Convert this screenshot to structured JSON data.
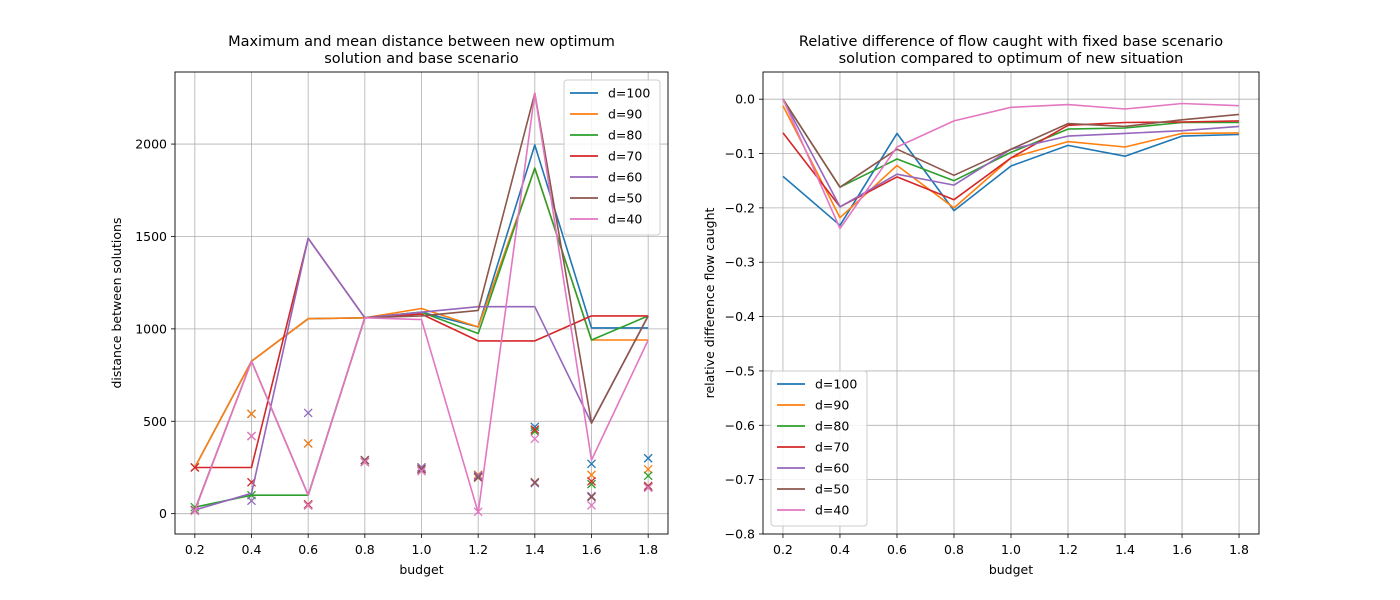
{
  "colors": {
    "d=100": "#1f77b4",
    "d=90": "#ff7f0e",
    "d=80": "#2ca02c",
    "d=70": "#d62728",
    "d=60": "#9467bd",
    "d=50": "#8c564b",
    "d=40": "#e377c2"
  },
  "chart_data": [
    {
      "type": "line",
      "title": "Maximum and mean distance between new optimum\nsolution and base scenario",
      "xlabel": "budget",
      "ylabel": "distance between solutions",
      "x": [
        0.2,
        0.4,
        0.6,
        0.8,
        1.0,
        1.2,
        1.4,
        1.6,
        1.8
      ],
      "xticks": [
        "0.2",
        "0.4",
        "0.6",
        "0.8",
        "1.0",
        "1.2",
        "1.4",
        "1.6",
        "1.8"
      ],
      "yticks": [
        "0",
        "500",
        "1000",
        "1500",
        "2000"
      ],
      "xlim": [
        0.13,
        1.87
      ],
      "ylim": [
        -110,
        2390
      ],
      "grid": true,
      "legend": "top-right",
      "series": [
        {
          "name": "d=100",
          "max": [
            250,
            825,
            1055,
            1060,
            1090,
            1010,
            1995,
            1005,
            1005
          ],
          "mean": [
            250,
            540,
            380,
            280,
            250,
            210,
            470,
            270,
            300
          ]
        },
        {
          "name": "d=90",
          "max": [
            250,
            825,
            1055,
            1060,
            1110,
            1010,
            1870,
            940,
            940
          ],
          "mean": [
            250,
            540,
            380,
            280,
            250,
            210,
            455,
            210,
            240
          ]
        },
        {
          "name": "d=80",
          "max": [
            35,
            100,
            100,
            1060,
            1090,
            975,
            1870,
            940,
            1070
          ],
          "mean": [
            35,
            100,
            50,
            280,
            240,
            200,
            445,
            160,
            205
          ]
        },
        {
          "name": "d=70",
          "max": [
            250,
            250,
            1490,
            1060,
            1080,
            935,
            935,
            1070,
            1070
          ],
          "mean": [
            250,
            170,
            50,
            280,
            240,
            200,
            455,
            175,
            150
          ]
        },
        {
          "name": "d=60",
          "max": [
            20,
            110,
            1490,
            1060,
            1090,
            1120,
            1120,
            490,
            1070
          ],
          "mean": [
            20,
            70,
            545,
            290,
            250,
            205,
            165,
            95,
            145
          ]
        },
        {
          "name": "d=50",
          "max": [
            20,
            825,
            100,
            1060,
            1070,
            1100,
            2275,
            490,
            1070
          ],
          "mean": [
            20,
            420,
            45,
            290,
            240,
            195,
            170,
            90,
            145
          ]
        },
        {
          "name": "d=40",
          "max": [
            15,
            825,
            100,
            1060,
            1050,
            5,
            2275,
            290,
            940
          ],
          "mean": [
            15,
            420,
            45,
            280,
            230,
            10,
            405,
            45,
            140
          ]
        }
      ]
    },
    {
      "type": "line",
      "title": "Relative difference of flow caught with fixed base scenario\nsolution compared to optimum of new situation",
      "xlabel": "budget",
      "ylabel": "relative difference flow caught",
      "x": [
        0.2,
        0.4,
        0.6,
        0.8,
        1.0,
        1.2,
        1.4,
        1.6,
        1.8
      ],
      "xticks": [
        "0.2",
        "0.4",
        "0.6",
        "0.8",
        "1.0",
        "1.2",
        "1.4",
        "1.6",
        "1.8"
      ],
      "yticks": [
        "0.0",
        "−0.1",
        "−0.2",
        "−0.3",
        "−0.4",
        "−0.5",
        "−0.6",
        "−0.7",
        "−0.8"
      ],
      "xlim": [
        0.13,
        1.87
      ],
      "ylim": [
        -0.8,
        0.05
      ],
      "grid": true,
      "legend": "bottom-left",
      "series": [
        {
          "name": "d=100",
          "values": [
            -0.142,
            -0.232,
            -0.063,
            -0.205,
            -0.123,
            -0.085,
            -0.105,
            -0.068,
            -0.065
          ]
        },
        {
          "name": "d=90",
          "values": [
            -0.012,
            -0.218,
            -0.122,
            -0.2,
            -0.108,
            -0.078,
            -0.088,
            -0.063,
            -0.062
          ]
        },
        {
          "name": "d=80",
          "values": [
            0.0,
            -0.162,
            -0.11,
            -0.15,
            -0.098,
            -0.055,
            -0.053,
            -0.043,
            -0.043
          ]
        },
        {
          "name": "d=70",
          "values": [
            -0.062,
            -0.198,
            -0.143,
            -0.185,
            -0.108,
            -0.048,
            -0.043,
            -0.042,
            -0.04
          ]
        },
        {
          "name": "d=60",
          "values": [
            0.0,
            -0.198,
            -0.138,
            -0.158,
            -0.092,
            -0.068,
            -0.063,
            -0.058,
            -0.05
          ]
        },
        {
          "name": "d=50",
          "values": [
            0.0,
            -0.162,
            -0.092,
            -0.14,
            -0.092,
            -0.045,
            -0.05,
            -0.038,
            -0.028
          ]
        },
        {
          "name": "d=40",
          "values": [
            0.0,
            -0.238,
            -0.088,
            -0.04,
            -0.015,
            -0.01,
            -0.018,
            -0.008,
            -0.012
          ]
        }
      ]
    }
  ]
}
